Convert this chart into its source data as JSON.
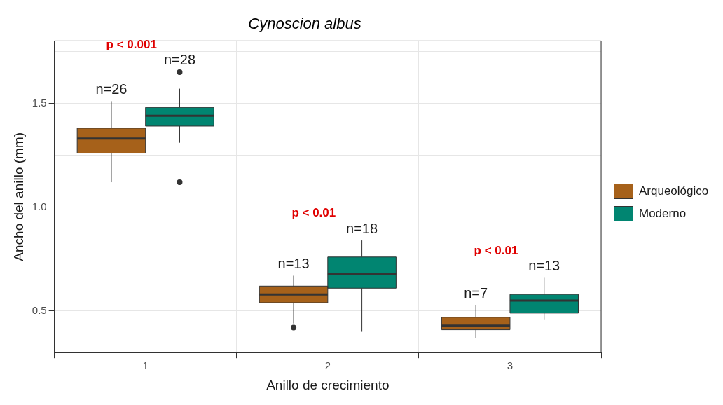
{
  "chart_data": {
    "type": "box",
    "title": "Cynoscion albus",
    "xlabel": "Anillo de crecimiento",
    "ylabel": "Ancho del anillo (mm)",
    "categories": [
      "1",
      "2",
      "3"
    ],
    "series": [
      {
        "name": "Arqueológico",
        "color": "#a6611a",
        "boxes": [
          {
            "low": 1.12,
            "q1": 1.26,
            "median": 1.33,
            "q3": 1.38,
            "high": 1.51
          },
          {
            "low": 0.44,
            "q1": 0.54,
            "median": 0.58,
            "q3": 0.62,
            "high": 0.67,
            "outliers": [
              0.42
            ]
          },
          {
            "low": 0.37,
            "q1": 0.41,
            "median": 0.43,
            "q3": 0.47,
            "high": 0.53
          }
        ]
      },
      {
        "name": "Moderno",
        "color": "#018571",
        "boxes": [
          {
            "low": 1.31,
            "q1": 1.39,
            "median": 1.44,
            "q3": 1.48,
            "high": 1.57,
            "outliers": [
              1.65,
              1.12
            ]
          },
          {
            "low": 0.4,
            "q1": 0.61,
            "median": 0.68,
            "q3": 0.76,
            "high": 0.84
          },
          {
            "low": 0.46,
            "q1": 0.49,
            "median": 0.55,
            "q3": 0.58,
            "high": 0.66
          }
        ]
      }
    ],
    "ylim": [
      0.3,
      1.8
    ],
    "yticks": [
      {
        "value": 0.5,
        "label": "0.5"
      },
      {
        "value": 0.75,
        "label": null
      },
      {
        "value": 1.0,
        "label": "1.0"
      },
      {
        "value": 1.25,
        "label": null
      },
      {
        "value": 1.5,
        "label": "1.5"
      },
      {
        "value": 1.75,
        "label": null
      }
    ],
    "grid": true,
    "legend": "right",
    "annotations": [
      "n=26",
      "n=28",
      "p < 0.001",
      "n=13",
      "n=18",
      "p < 0.01",
      "n=7",
      "n=13",
      "p < 0.01"
    ]
  }
}
